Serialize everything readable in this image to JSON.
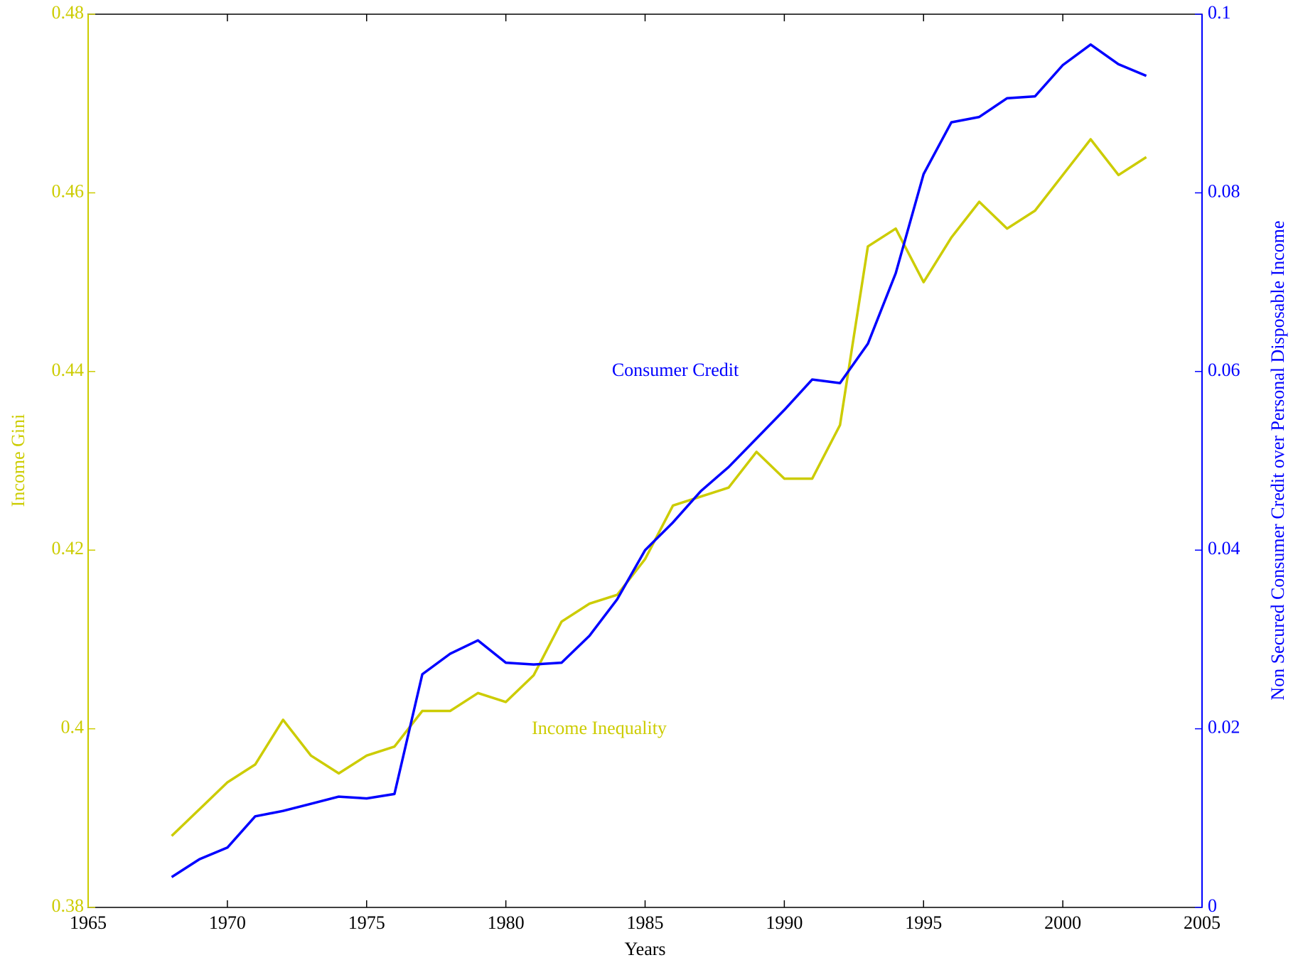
{
  "chart_data": {
    "type": "line",
    "x": [
      1968,
      1969,
      1970,
      1971,
      1972,
      1973,
      1974,
      1975,
      1976,
      1977,
      1978,
      1979,
      1980,
      1981,
      1982,
      1983,
      1984,
      1985,
      1986,
      1987,
      1988,
      1989,
      1990,
      1991,
      1992,
      1993,
      1994,
      1995,
      1996,
      1997,
      1998,
      1999,
      2000,
      2001,
      2002,
      2003
    ],
    "series": [
      {
        "name": "Income Inequality",
        "color": "#cccc00",
        "axis": "y",
        "values": [
          0.388,
          0.391,
          0.394,
          0.396,
          0.401,
          0.397,
          0.395,
          0.397,
          0.398,
          0.402,
          0.402,
          0.404,
          0.403,
          0.406,
          0.412,
          0.414,
          0.415,
          0.419,
          0.425,
          0.426,
          0.427,
          0.431,
          0.428,
          0.428,
          0.434,
          0.454,
          0.456,
          0.45,
          0.455,
          0.459,
          0.456,
          0.458,
          0.462,
          0.466,
          0.462,
          0.464
        ]
      },
      {
        "name": "Consumer Credit",
        "color": "#0000ff",
        "axis": "y2",
        "values": [
          0.0034,
          0.0054,
          0.0067,
          0.0102,
          0.0108,
          0.0116,
          0.0124,
          0.0122,
          0.0127,
          0.0261,
          0.0284,
          0.0299,
          0.0274,
          0.0272,
          0.0274,
          0.0304,
          0.0345,
          0.04,
          0.0431,
          0.0466,
          0.0493,
          0.0525,
          0.0557,
          0.0591,
          0.0587,
          0.0631,
          0.071,
          0.0821,
          0.0879,
          0.0885,
          0.0906,
          0.0908,
          0.0943,
          0.0966,
          0.0944,
          0.0931
        ]
      }
    ],
    "xlabel": "Years",
    "ylabel": "Income Gini",
    "y2label": "Non Secured Consumer Credit over Personal Disposable Income",
    "xlim": [
      1965,
      2005
    ],
    "xticks": [
      1965,
      1970,
      1975,
      1980,
      1985,
      1990,
      1995,
      2000,
      2005
    ],
    "ylim": [
      0.38,
      0.48
    ],
    "yticks": [
      0.38,
      0.4,
      0.42,
      0.44,
      0.46,
      0.48
    ],
    "y2lim": [
      0,
      0.1
    ],
    "y2ticks": [
      0,
      0.02,
      0.04,
      0.06,
      0.08,
      0.1
    ],
    "ycolor": "#cccc00",
    "y2color": "#0000ff",
    "grid": false
  }
}
